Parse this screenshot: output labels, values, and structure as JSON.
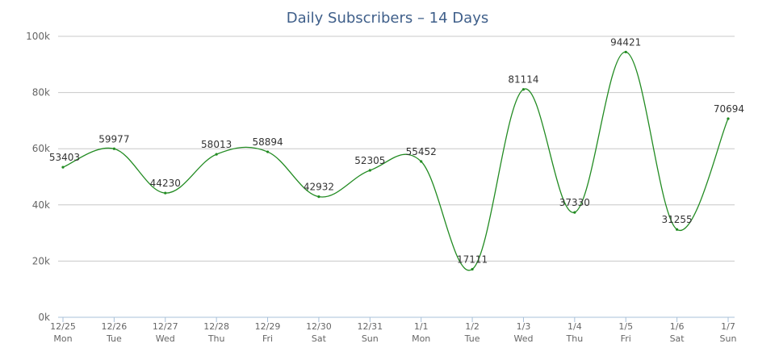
{
  "chart_data": {
    "type": "line",
    "title": "Daily Subscribers – 14 Days",
    "xlabel": "",
    "ylabel": "",
    "ylim": [
      0,
      100000
    ],
    "yticks": [
      "0k",
      "20k",
      "40k",
      "60k",
      "80k",
      "100k"
    ],
    "ytick_values": [
      0,
      20000,
      40000,
      60000,
      80000,
      100000
    ],
    "grid": true,
    "legend": "none",
    "categories": [
      "12/25",
      "12/26",
      "12/27",
      "12/28",
      "12/29",
      "12/30",
      "12/31",
      "1/1",
      "1/2",
      "1/3",
      "1/4",
      "1/5",
      "1/6",
      "1/7"
    ],
    "weekdays": [
      "Mon",
      "Tue",
      "Wed",
      "Thu",
      "Fri",
      "Sat",
      "Sun",
      "Mon",
      "Tue",
      "Wed",
      "Thu",
      "Fri",
      "Sat",
      "Sun"
    ],
    "series": [
      {
        "color": "#228b22",
        "values": [
          53403,
          59977,
          44230,
          58013,
          58894,
          42932,
          52305,
          55452,
          17111,
          81114,
          37330,
          94421,
          31255,
          70694
        ]
      }
    ]
  }
}
